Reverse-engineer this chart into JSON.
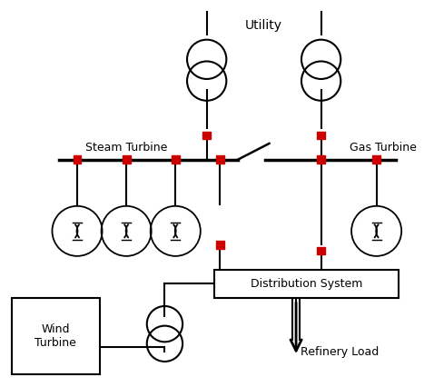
{
  "bg_color": "#ffffff",
  "line_color": "#000000",
  "breaker_color": "#cc0000",
  "utility_label": "Utility",
  "steam_turbine_label": "Steam Turbine",
  "gas_turbine_label": "Gas Turbine",
  "distribution_label": "Distribution System",
  "wind_turbine_label": "Wind\nTurbine",
  "refinery_load_label": "Refinery Load",
  "figsize": [
    4.78,
    4.26
  ],
  "dpi": 100,
  "xlim": [
    0,
    478
  ],
  "ylim": [
    0,
    426
  ]
}
